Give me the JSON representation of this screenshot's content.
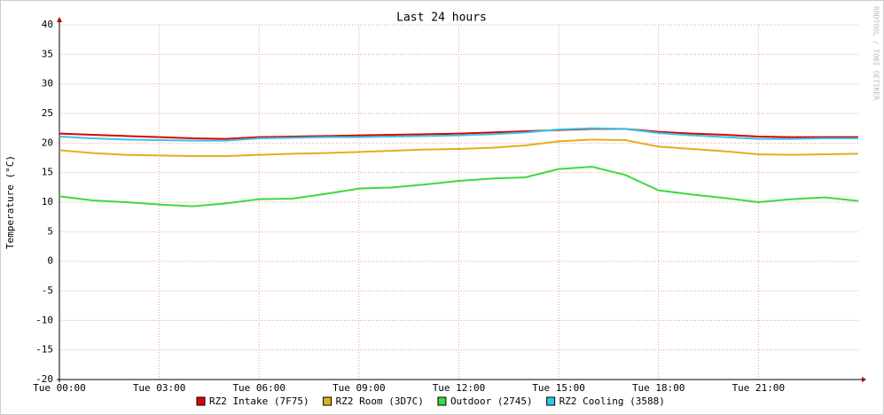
{
  "chart_data": {
    "type": "line",
    "title": "Last 24 hours",
    "y_label": "Temperature (°C)",
    "watermark": "RRDTOOL / TOBI OETIKER",
    "x": [
      0,
      1,
      2,
      3,
      4,
      5,
      6,
      7,
      8,
      9,
      10,
      11,
      12,
      13,
      14,
      15,
      16,
      17,
      18,
      19,
      20,
      21,
      22,
      23,
      24
    ],
    "xlim": [
      0,
      24
    ],
    "xticks": [
      {
        "value": 0,
        "label": "Tue 00:00"
      },
      {
        "value": 3,
        "label": "Tue 03:00"
      },
      {
        "value": 6,
        "label": "Tue 06:00"
      },
      {
        "value": 9,
        "label": "Tue 09:00"
      },
      {
        "value": 12,
        "label": "Tue 12:00"
      },
      {
        "value": 15,
        "label": "Tue 15:00"
      },
      {
        "value": 18,
        "label": "Tue 18:00"
      },
      {
        "value": 21,
        "label": "Tue 21:00"
      }
    ],
    "ylim": [
      -20,
      40
    ],
    "yticks": [
      40,
      35,
      30,
      25,
      20,
      15,
      10,
      5,
      0,
      -5,
      -10,
      -15,
      -20
    ],
    "grid": true,
    "legend": "bottom",
    "series": [
      {
        "name": "RZ2 Intake (7F75)",
        "color": "#e00000",
        "values": [
          21.6,
          21.4,
          21.2,
          21.0,
          20.8,
          20.7,
          21.0,
          21.1,
          21.2,
          21.3,
          21.4,
          21.5,
          21.6,
          21.8,
          22.0,
          22.2,
          22.4,
          22.4,
          21.9,
          21.6,
          21.4,
          21.1,
          21.0,
          21.0,
          21.0
        ]
      },
      {
        "name": "RZ2 Room (3D7C)",
        "color": "#e0b020",
        "values": [
          18.8,
          18.3,
          18.0,
          17.9,
          17.8,
          17.8,
          18.0,
          18.2,
          18.3,
          18.5,
          18.7,
          18.9,
          19.0,
          19.2,
          19.6,
          20.3,
          20.6,
          20.5,
          19.4,
          19.0,
          18.6,
          18.1,
          18.0,
          18.1,
          18.2
        ]
      },
      {
        "name": "Outdoor (2745)",
        "color": "#40d840",
        "values": [
          11.0,
          10.3,
          10.0,
          9.6,
          9.3,
          9.8,
          10.5,
          10.6,
          11.4,
          12.3,
          12.5,
          13.0,
          13.6,
          14.0,
          14.2,
          15.6,
          16.0,
          14.6,
          12.0,
          11.3,
          10.7,
          10.0,
          10.5,
          10.8,
          10.2
        ]
      },
      {
        "name": "RZ2 Cooling (3588)",
        "color": "#30c8e8",
        "values": [
          21.1,
          20.8,
          20.6,
          20.5,
          20.4,
          20.4,
          20.8,
          20.9,
          21.0,
          21.0,
          21.1,
          21.2,
          21.3,
          21.5,
          21.8,
          22.3,
          22.5,
          22.4,
          21.7,
          21.3,
          21.0,
          20.7,
          20.7,
          20.8,
          20.8
        ]
      }
    ]
  }
}
